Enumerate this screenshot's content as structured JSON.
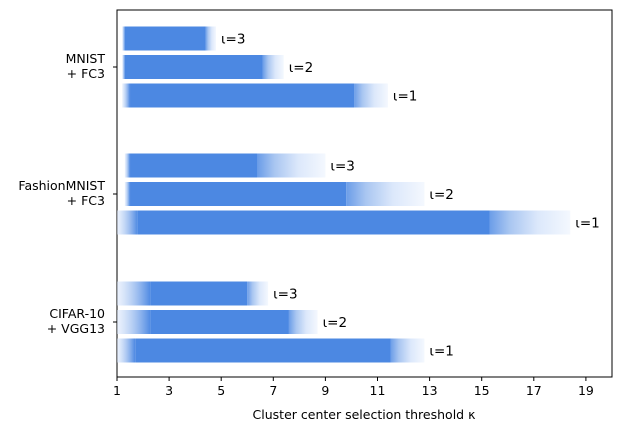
{
  "chart_data": {
    "type": "bar",
    "orientation": "horizontal",
    "xlabel": "Cluster center selection threshold κ",
    "ylabel": "",
    "xlim": [
      1,
      20
    ],
    "xticks": [
      "1",
      "3",
      "5",
      "7",
      "9",
      "11",
      "13",
      "15",
      "17",
      "19"
    ],
    "grid": false,
    "bar_color": "#4c88e2",
    "fade_color": "#dbe7fb",
    "groups": [
      {
        "label_lines": [
          "MNIST",
          "+ FC3"
        ],
        "bars": [
          {
            "label": "ι=3",
            "start": 1.2,
            "solid_start": 1.3,
            "solid_end": 4.4,
            "end": 4.8
          },
          {
            "label": "ι=2",
            "start": 1.2,
            "solid_start": 1.3,
            "solid_end": 6.6,
            "end": 7.4
          },
          {
            "label": "ι=1",
            "start": 1.2,
            "solid_start": 1.5,
            "solid_end": 10.1,
            "end": 11.4
          }
        ]
      },
      {
        "label_lines": [
          "FashionMNIST",
          "+ FC3"
        ],
        "bars": [
          {
            "label": "ι=3",
            "start": 1.3,
            "solid_start": 1.5,
            "solid_end": 6.4,
            "end": 9.0
          },
          {
            "label": "ι=2",
            "start": 1.3,
            "solid_start": 1.5,
            "solid_end": 9.8,
            "end": 12.8
          },
          {
            "label": "ι=1",
            "start": 1.0,
            "solid_start": 1.8,
            "solid_end": 15.3,
            "end": 18.4
          }
        ]
      },
      {
        "label_lines": [
          "CIFAR-10",
          "+ VGG13"
        ],
        "bars": [
          {
            "label": "ι=3",
            "start": 1.0,
            "solid_start": 2.3,
            "solid_end": 6.0,
            "end": 6.8
          },
          {
            "label": "ι=2",
            "start": 1.0,
            "solid_start": 2.3,
            "solid_end": 7.6,
            "end": 8.7
          },
          {
            "label": "ι=1",
            "start": 1.0,
            "solid_start": 1.7,
            "solid_end": 11.5,
            "end": 12.8
          }
        ]
      }
    ]
  }
}
